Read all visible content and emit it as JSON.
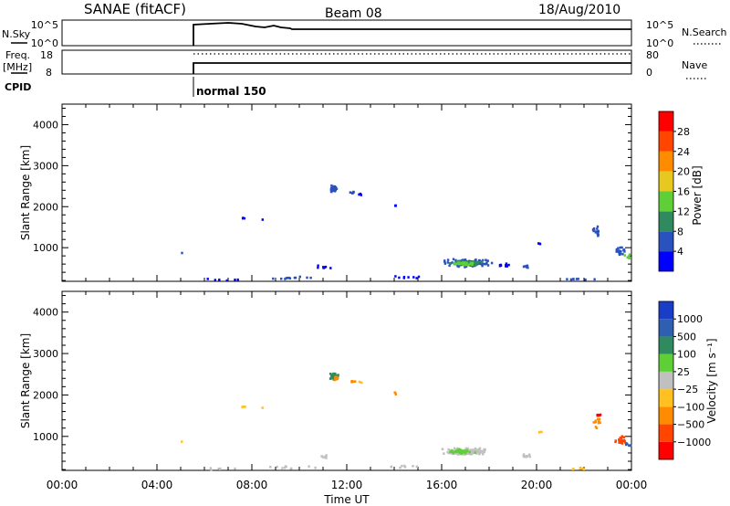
{
  "header": {
    "station": "SANAE (fitACF)",
    "beam": "Beam 08",
    "date": "18/Aug/2010"
  },
  "panels": {
    "nsky": {
      "label": "N.Sky",
      "left_ticks": [
        "10^5",
        "10^0"
      ],
      "right_ticks": [
        "10^5",
        "10^0"
      ],
      "right_label": "N.Search"
    },
    "freq": {
      "label_line1": "Freq.",
      "label_line2": "[MHz]",
      "left_ticks": [
        "18",
        "8"
      ],
      "right_ticks": [
        "80",
        "0"
      ],
      "right_label": "Nave"
    },
    "cpid": {
      "label": "CPID",
      "mode": "normal 150"
    }
  },
  "chart_data": [
    {
      "type": "heatmap",
      "title": "",
      "xlabel": "Time UT",
      "ylabel": "Slant Range [km]",
      "x_unit": "hours UT",
      "xlim": [
        0,
        24
      ],
      "ylim": [
        180,
        4500
      ],
      "x_ticks": [
        "00:00",
        "04:00",
        "08:00",
        "12:00",
        "16:00",
        "20:00",
        "00:00"
      ],
      "y_ticks": [
        "1000",
        "2000",
        "3000",
        "4000"
      ],
      "y_tick_values": [
        1000,
        2000,
        3000,
        4000
      ],
      "colorbar": {
        "label": "Power [dB]",
        "ticks": [
          "4",
          "8",
          "12",
          "16",
          "20",
          "24",
          "28"
        ],
        "colors": [
          "#0000ff",
          "#2a52be",
          "#2f8a60",
          "#5fcf37",
          "#e6c81e",
          "#ff8c00",
          "#ff4500",
          "#ff0000"
        ]
      },
      "blobs": [
        {
          "t": 11.4,
          "r": 2460,
          "dt": 0.28,
          "dr": 110,
          "n": 36,
          "color": "#2a52be"
        },
        {
          "t": 12.2,
          "r": 2360,
          "dt": 0.15,
          "dr": 50,
          "n": 6,
          "color": "#2a52be"
        },
        {
          "t": 12.5,
          "r": 2340,
          "dt": 0.1,
          "dr": 40,
          "n": 3,
          "color": "#0000ff"
        },
        {
          "t": 14.0,
          "r": 2060,
          "dt": 0.1,
          "dr": 40,
          "n": 3,
          "color": "#0000ff"
        },
        {
          "t": 7.6,
          "r": 1740,
          "dt": 0.1,
          "dr": 20,
          "n": 3,
          "color": "#0000ff"
        },
        {
          "t": 8.4,
          "r": 1720,
          "dt": 0.05,
          "dr": 10,
          "n": 1,
          "color": "#0000ff"
        },
        {
          "t": 17.0,
          "r": 660,
          "dt": 1.2,
          "dr": 110,
          "n": 130,
          "color": "#2a52be"
        },
        {
          "t": 17.0,
          "r": 660,
          "dt": 0.8,
          "dr": 70,
          "n": 70,
          "color": "#2f8a60"
        },
        {
          "t": 16.9,
          "r": 640,
          "dt": 0.6,
          "dr": 50,
          "n": 40,
          "color": "#5fcf37"
        },
        {
          "t": 18.6,
          "r": 600,
          "dt": 0.3,
          "dr": 60,
          "n": 14,
          "color": "#0000ff"
        },
        {
          "t": 19.5,
          "r": 560,
          "dt": 0.2,
          "dr": 40,
          "n": 6,
          "color": "#2a52be"
        },
        {
          "t": 20.1,
          "r": 1130,
          "dt": 0.1,
          "dr": 20,
          "n": 3,
          "color": "#0000ff"
        },
        {
          "t": 22.5,
          "r": 1400,
          "dt": 0.2,
          "dr": 200,
          "n": 16,
          "color": "#2a52be"
        },
        {
          "t": 23.5,
          "r": 950,
          "dt": 0.3,
          "dr": 150,
          "n": 22,
          "color": "#2a52be"
        },
        {
          "t": 23.8,
          "r": 820,
          "dt": 0.15,
          "dr": 60,
          "n": 6,
          "color": "#5fcf37"
        },
        {
          "t": 5.0,
          "r": 900,
          "dt": 0.05,
          "dr": 20,
          "n": 1,
          "color": "#2a52be"
        },
        {
          "t": 11.0,
          "r": 540,
          "dt": 0.5,
          "dr": 60,
          "n": 8,
          "color": "#0000ff"
        },
        {
          "t": 9.6,
          "r": 290,
          "dt": 1.5,
          "dr": 60,
          "n": 12,
          "color": "#2a52be"
        },
        {
          "t": 14.5,
          "r": 300,
          "dt": 1.0,
          "dr": 50,
          "n": 8,
          "color": "#0000ff"
        },
        {
          "t": 6.5,
          "r": 250,
          "dt": 1.5,
          "dr": 40,
          "n": 6,
          "color": "#0000ff"
        },
        {
          "t": 21.8,
          "r": 250,
          "dt": 1.2,
          "dr": 40,
          "n": 8,
          "color": "#2a52be"
        }
      ]
    },
    {
      "type": "heatmap",
      "title": "",
      "xlabel": "Time UT",
      "ylabel": "Slant Range [km]",
      "x_unit": "hours UT",
      "xlim": [
        0,
        24
      ],
      "ylim": [
        180,
        4500
      ],
      "x_ticks": [
        "00:00",
        "04:00",
        "08:00",
        "12:00",
        "16:00",
        "20:00",
        "00:00"
      ],
      "y_ticks": [
        "1000",
        "2000",
        "3000",
        "4000"
      ],
      "y_tick_values": [
        1000,
        2000,
        3000,
        4000
      ],
      "colorbar": {
        "label": "Velocity [m s⁻¹]",
        "ticks": [
          "1000",
          "500",
          "100",
          "25",
          "−25",
          "−100",
          "−500",
          "−1000"
        ],
        "colors": [
          "#1a3dc8",
          "#2e5fb0",
          "#2f8a60",
          "#5fcf37",
          "#c0c0c0",
          "#ffc020",
          "#ff8c00",
          "#ff4500",
          "#ff0000"
        ]
      },
      "blobs": [
        {
          "t": 11.4,
          "r": 2460,
          "dt": 0.28,
          "dr": 110,
          "n": 30,
          "color": "#2f8a60"
        },
        {
          "t": 11.5,
          "r": 2430,
          "dt": 0.15,
          "dr": 80,
          "n": 10,
          "color": "#ff8c00"
        },
        {
          "t": 12.2,
          "r": 2360,
          "dt": 0.15,
          "dr": 50,
          "n": 6,
          "color": "#ff8c00"
        },
        {
          "t": 12.5,
          "r": 2340,
          "dt": 0.1,
          "dr": 40,
          "n": 3,
          "color": "#ffc020"
        },
        {
          "t": 14.0,
          "r": 2060,
          "dt": 0.1,
          "dr": 40,
          "n": 3,
          "color": "#ff8c00"
        },
        {
          "t": 7.6,
          "r": 1740,
          "dt": 0.1,
          "dr": 20,
          "n": 3,
          "color": "#ffc020"
        },
        {
          "t": 8.4,
          "r": 1720,
          "dt": 0.05,
          "dr": 10,
          "n": 1,
          "color": "#ffc020"
        },
        {
          "t": 17.0,
          "r": 660,
          "dt": 1.2,
          "dr": 110,
          "n": 140,
          "color": "#c0c0c0"
        },
        {
          "t": 16.8,
          "r": 660,
          "dt": 0.7,
          "dr": 70,
          "n": 40,
          "color": "#5fcf37"
        },
        {
          "t": 19.6,
          "r": 560,
          "dt": 0.3,
          "dr": 60,
          "n": 10,
          "color": "#c0c0c0"
        },
        {
          "t": 20.1,
          "r": 1130,
          "dt": 0.1,
          "dr": 20,
          "n": 3,
          "color": "#ffc020"
        },
        {
          "t": 22.5,
          "r": 1400,
          "dt": 0.2,
          "dr": 200,
          "n": 16,
          "color": "#ff8c00"
        },
        {
          "t": 22.6,
          "r": 1550,
          "dt": 0.1,
          "dr": 80,
          "n": 5,
          "color": "#ff0000"
        },
        {
          "t": 23.5,
          "r": 950,
          "dt": 0.3,
          "dr": 150,
          "n": 22,
          "color": "#ff4500"
        },
        {
          "t": 23.8,
          "r": 820,
          "dt": 0.15,
          "dr": 60,
          "n": 6,
          "color": "#2e5fb0"
        },
        {
          "t": 5.0,
          "r": 900,
          "dt": 0.05,
          "dr": 20,
          "n": 1,
          "color": "#ffc020"
        },
        {
          "t": 11.0,
          "r": 540,
          "dt": 0.5,
          "dr": 60,
          "n": 6,
          "color": "#c0c0c0"
        },
        {
          "t": 9.6,
          "r": 290,
          "dt": 1.5,
          "dr": 60,
          "n": 10,
          "color": "#c0c0c0"
        },
        {
          "t": 14.5,
          "r": 300,
          "dt": 1.0,
          "dr": 50,
          "n": 8,
          "color": "#c0c0c0"
        },
        {
          "t": 6.5,
          "r": 250,
          "dt": 1.5,
          "dr": 40,
          "n": 6,
          "color": "#c0c0c0"
        },
        {
          "t": 21.8,
          "r": 250,
          "dt": 1.2,
          "dr": 40,
          "n": 6,
          "color": "#ffc020"
        }
      ]
    }
  ]
}
